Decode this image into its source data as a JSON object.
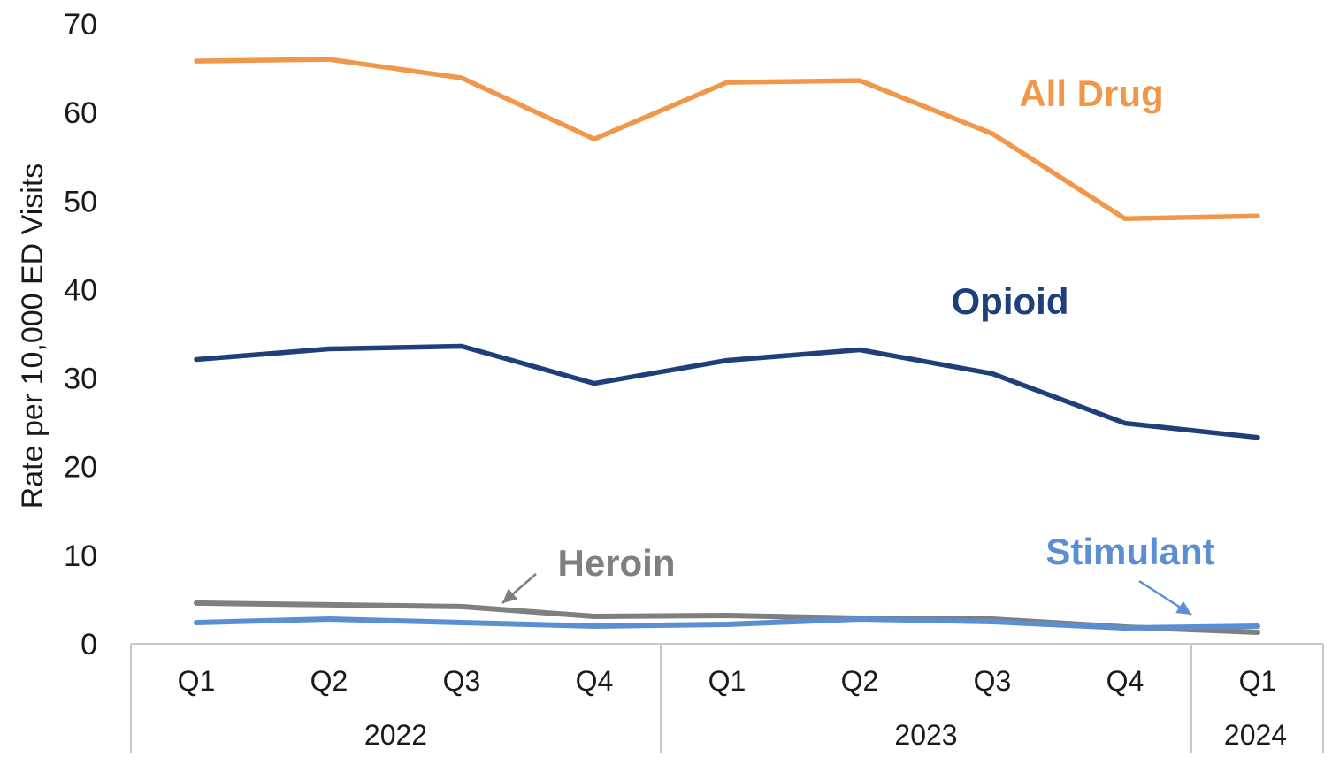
{
  "chart_data": {
    "type": "line",
    "ylabel": "Rate per 10,000 ED Visits",
    "xlabel": "",
    "ylim": [
      0,
      70
    ],
    "yticks": [
      0,
      10,
      20,
      30,
      40,
      50,
      60,
      70
    ],
    "grid": false,
    "categories": [
      "Q1",
      "Q2",
      "Q3",
      "Q4",
      "Q1",
      "Q2",
      "Q3",
      "Q4",
      "Q1"
    ],
    "groups": [
      {
        "label": "2022",
        "count": 4
      },
      {
        "label": "2023",
        "count": 4
      },
      {
        "label": "2024",
        "count": 1
      }
    ],
    "series": [
      {
        "name": "All Drug",
        "color": "#F0974A",
        "values": [
          65.8,
          66.0,
          63.9,
          57.0,
          63.4,
          63.6,
          57.6,
          48.0,
          48.3
        ]
      },
      {
        "name": "Opioid",
        "color": "#1F3F7A",
        "values": [
          32.1,
          33.3,
          33.6,
          29.4,
          32.0,
          33.2,
          30.5,
          24.9,
          23.3
        ]
      },
      {
        "name": "Heroin",
        "color": "#7F7F7F",
        "values": [
          4.6,
          4.4,
          4.2,
          3.1,
          3.2,
          2.9,
          2.8,
          1.9,
          1.3
        ]
      },
      {
        "name": "Stimulant",
        "color": "#5B8FD3",
        "values": [
          2.4,
          2.8,
          2.4,
          2.0,
          2.2,
          2.8,
          2.5,
          1.8,
          2.0
        ]
      }
    ]
  }
}
